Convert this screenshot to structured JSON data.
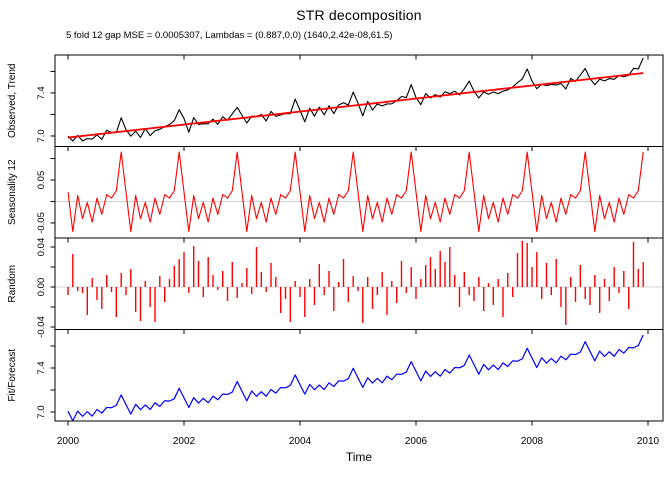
{
  "title": "STR decomposition",
  "subtitle": "5 fold 12 gap MSE = 0.0005307, Lambdas = (0.887,0,0) (1640,2.42e-08,61.5)",
  "xlabel": "Time",
  "colors": {
    "observed": "#000000",
    "trend": "#ff0000",
    "seasonal": "#ff0000",
    "random": "#ff0000",
    "fit": "#0000ff",
    "zero_line": "#d3d3d3",
    "axis": "#000000",
    "background": "#ffffff"
  },
  "chart_data": {
    "type": "line",
    "title": "STR decomposition",
    "subtitle": "5 fold 12 gap MSE = 0.0005307, Lambdas = (0.887,0,0) (1640,2.42e-08,61.5)",
    "xlabel": "Time",
    "x_start_year": 2000,
    "x_step": "monthly",
    "n_points": 120,
    "x_ticks": [
      2000,
      2002,
      2004,
      2006,
      2008,
      2010
    ],
    "x_tick_labels": [
      "2000",
      "2002",
      "2004",
      "2006",
      "2008",
      "2010"
    ],
    "grid": false,
    "legend": "none",
    "panels": [
      {
        "name": "Observed, Trend",
        "ylim": [
          6.902,
          7.753
        ],
        "yticks": [
          7.0,
          7.2,
          7.4,
          7.6
        ],
        "ytick_labels": [
          "7.0",
          "",
          "7.4",
          ""
        ],
        "series_drawn": [
          "observed",
          "trend"
        ],
        "zero_line": false
      },
      {
        "name": "Seasonality 12",
        "ylim": [
          -0.085,
          0.128
        ],
        "yticks": [
          -0.05,
          0.0,
          0.05,
          0.1
        ],
        "ytick_labels": [
          "-0.05",
          "",
          "0.05",
          ""
        ],
        "series_drawn": [
          "seasonal"
        ],
        "zero_line": true
      },
      {
        "name": "Random",
        "ylim": [
          -0.0425,
          0.049
        ],
        "yticks": [
          -0.04,
          -0.02,
          0.0,
          0.02,
          0.04
        ],
        "ytick_labels": [
          "-0.04",
          "",
          "0.00",
          "",
          "0.04"
        ],
        "series_drawn": [
          "random_bars"
        ],
        "zero_line": true
      },
      {
        "name": "Fit/Forecast",
        "ylim": [
          6.918,
          7.75
        ],
        "yticks": [
          7.0,
          7.2,
          7.4,
          7.6
        ],
        "ytick_labels": [
          "7.0",
          "",
          "7.4",
          ""
        ],
        "series_drawn": [
          "fit"
        ],
        "zero_line": false
      }
    ],
    "trend": {
      "shape": "linear",
      "start": 6.985,
      "end": 7.585
    },
    "seasonal_pattern_monthly": [
      0.022,
      -0.07,
      0.014,
      -0.04,
      -0.002,
      -0.048,
      0.008,
      -0.03,
      0.016,
      0.008,
      0.025,
      0.115
    ],
    "random": [
      -0.008,
      0.033,
      -0.004,
      -0.006,
      -0.028,
      0.009,
      -0.013,
      -0.022,
      0.012,
      -0.005,
      -0.03,
      0.014,
      -0.008,
      0.018,
      -0.025,
      -0.034,
      0.006,
      -0.02,
      -0.035,
      0.011,
      -0.015,
      0.008,
      0.021,
      0.028,
      0.035,
      -0.006,
      0.041,
      0.026,
      -0.01,
      0.03,
      0.012,
      -0.003,
      0.016,
      -0.014,
      0.025,
      -0.011,
      0.004,
      0.019,
      -0.007,
      0.04,
      0.015,
      -0.005,
      0.024,
      0.01,
      -0.026,
      -0.012,
      -0.035,
      0.006,
      -0.01,
      -0.03,
      0.008,
      -0.018,
      0.023,
      -0.008,
      0.016,
      -0.024,
      0.005,
      0.028,
      -0.015,
      0.011,
      -0.004,
      -0.036,
      0.01,
      -0.022,
      -0.008,
      0.015,
      -0.028,
      0.006,
      -0.016,
      0.026,
      -0.006,
      0.02,
      -0.012,
      0.008,
      0.022,
      0.03,
      0.018,
      0.036,
      0.025,
      0.04,
      0.012,
      -0.02,
      0.015,
      -0.008,
      -0.014,
      0.01,
      -0.024,
      0.004,
      -0.018,
      0.008,
      -0.03,
      0.014,
      -0.01,
      0.034,
      0.046,
      0.044,
      0.02,
      0.035,
      -0.012,
      0.024,
      -0.008,
      0.028,
      -0.02,
      -0.038,
      0.01,
      -0.015,
      0.022,
      -0.012,
      -0.018,
      0.012,
      -0.026,
      0.008,
      -0.014,
      0.02,
      -0.006,
      0.016,
      -0.022,
      0.045,
      0.018,
      0.025
    ],
    "derived_series": {
      "observed": "trend + seasonal + random",
      "fit": "trend + seasonal"
    }
  }
}
